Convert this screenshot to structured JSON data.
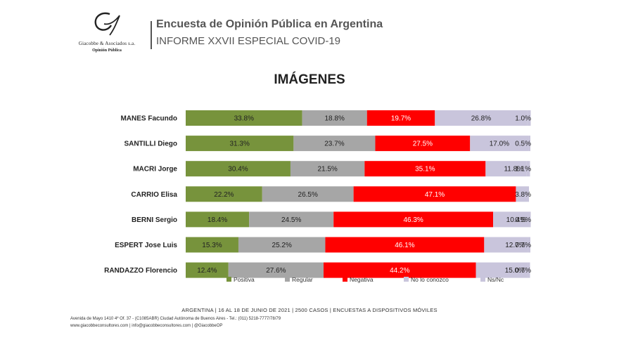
{
  "header": {
    "logo_name": "Giacobbe & Asociados s.a.",
    "logo_sub": "Opinión Pública",
    "title_line1": "Encuesta de Opinión Pública en Argentina",
    "title_line2": "INFORME XXVII ESPECIAL COVID-19"
  },
  "footer": {
    "main": "ARGENTINA | 16 AL 18 DE JUNIO DE 2021 | 2500 CASOS | ENCUESTAS A DISPOSITIVOS MÓVILES",
    "address": "Avenida de Mayo 1410 4º Of. 37 - (C1085ABR) Ciudad Autónoma de Buenos Aires - Tel.: (011) 5218-7777/78/79",
    "web": "www.giacobbeconsultores.com | info@giacobbeconsultores.com | @GiacobbeOP"
  },
  "chart_data": {
    "type": "bar",
    "orientation": "horizontal",
    "stacked": true,
    "title": "IMÁGENES",
    "categories": [
      "MANES Facundo",
      "SANTILLI Diego",
      "MACRI Jorge",
      "CARRIO Elisa",
      "BERNI Sergio",
      "ESPERT Jose Luis",
      "RANDAZZO Florencio"
    ],
    "series": [
      {
        "name": "Positiva",
        "color": "#77933c",
        "values": [
          33.8,
          31.3,
          30.4,
          22.2,
          18.4,
          15.3,
          12.4
        ]
      },
      {
        "name": "Regular",
        "color": "#a6a6a6",
        "values": [
          18.8,
          23.7,
          21.5,
          26.5,
          24.5,
          25.2,
          27.6
        ]
      },
      {
        "name": "Negativa",
        "color": "#ff0000",
        "values": [
          19.7,
          27.5,
          35.1,
          47.1,
          46.3,
          46.1,
          44.2
        ]
      },
      {
        "name": "No lo conozco",
        "color": "#c9c5dc",
        "values": [
          26.8,
          17.0,
          11.8,
          null,
          10.4,
          12.7,
          15.0
        ]
      },
      {
        "name": "Ns/Nc",
        "color": "#c9c5dc",
        "values": [
          1.0,
          0.5,
          1.1,
          3.8,
          0.5,
          0.7,
          0.7
        ]
      }
    ],
    "data_labels": [
      [
        "33.8%",
        "18.8%",
        "19.7%",
        "26.8%",
        "1.0%"
      ],
      [
        "31.3%",
        "23.7%",
        "27.5%",
        "17.0%",
        "0.5%"
      ],
      [
        "30.4%",
        "21.5%",
        "35.1%",
        "11.8%",
        "1.1%"
      ],
      [
        "22.2%",
        "26.5%",
        "47.1%",
        "",
        "3.8%"
      ],
      [
        "18.4%",
        "24.5%",
        "46.3%",
        "10.4%",
        "0.5%"
      ],
      [
        "15.3%",
        "25.2%",
        "46.1%",
        "12.7%",
        "0.7%"
      ],
      [
        "12.4%",
        "27.6%",
        "44.2%",
        "15.0%",
        "0.7%"
      ]
    ],
    "xlim": [
      0,
      100
    ],
    "legend_position": "bottom",
    "grid": false
  }
}
